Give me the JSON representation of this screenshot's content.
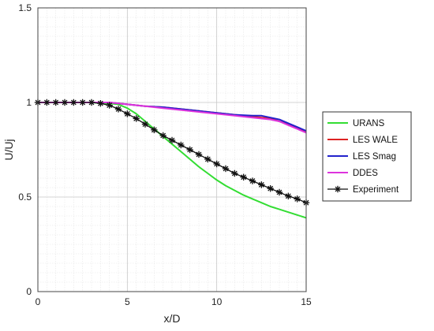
{
  "chart_data": {
    "type": "line",
    "title": "",
    "xlabel": "x/D",
    "ylabel": "U/Uj",
    "xlim": [
      0,
      15
    ],
    "ylim": [
      0,
      1.5
    ],
    "x_ticks": [
      "0",
      "5",
      "10",
      "15"
    ],
    "y_ticks": [
      "0",
      "0.5",
      "1",
      "1.5"
    ],
    "grid": true,
    "minor_grid": true,
    "legend_position": "right",
    "series": [
      {
        "name": "URANS",
        "color": "#33dd33",
        "marker": "none",
        "x": [
          0,
          1,
          2,
          3,
          4,
          4.5,
          5,
          5.5,
          6,
          6.5,
          7,
          7.5,
          8,
          8.5,
          9,
          9.5,
          10,
          10.5,
          11,
          11.5,
          12,
          12.5,
          13,
          13.5,
          14,
          14.5,
          15
        ],
        "y": [
          1,
          1,
          1,
          1,
          0.995,
          0.99,
          0.97,
          0.94,
          0.9,
          0.86,
          0.82,
          0.78,
          0.74,
          0.7,
          0.66,
          0.625,
          0.59,
          0.56,
          0.535,
          0.51,
          0.49,
          0.47,
          0.45,
          0.435,
          0.42,
          0.405,
          0.39
        ]
      },
      {
        "name": "LES WALE",
        "color": "#dd2222",
        "marker": "none",
        "x": [
          0,
          1,
          2,
          3,
          4,
          5,
          6,
          7,
          8,
          9,
          10,
          11,
          12,
          13,
          13.5,
          14,
          14.5,
          15
        ],
        "y": [
          1,
          1,
          1,
          1,
          1,
          0.99,
          0.98,
          0.975,
          0.965,
          0.955,
          0.945,
          0.935,
          0.925,
          0.915,
          0.9,
          0.885,
          0.865,
          0.845
        ]
      },
      {
        "name": "LES Smag",
        "color": "#2222cc",
        "marker": "none",
        "x": [
          0,
          1,
          2,
          3,
          4,
          5,
          6,
          7,
          8,
          9,
          10,
          11,
          12,
          12.5,
          13,
          13.5,
          14,
          14.5,
          15
        ],
        "y": [
          1,
          1,
          1,
          1,
          1,
          0.99,
          0.98,
          0.975,
          0.965,
          0.955,
          0.945,
          0.935,
          0.93,
          0.93,
          0.92,
          0.91,
          0.89,
          0.87,
          0.85
        ]
      },
      {
        "name": "DDES",
        "color": "#dd33dd",
        "marker": "none",
        "x": [
          0,
          1,
          2,
          3,
          4,
          5,
          6,
          7,
          8,
          9,
          10,
          11,
          12,
          13,
          13.5,
          14,
          14.5,
          15
        ],
        "y": [
          1,
          1,
          1,
          1,
          1,
          0.99,
          0.98,
          0.97,
          0.96,
          0.95,
          0.94,
          0.93,
          0.92,
          0.91,
          0.9,
          0.88,
          0.86,
          0.84
        ]
      },
      {
        "name": "Experiment",
        "color": "#111111",
        "marker": "star",
        "x": [
          0,
          0.5,
          1,
          1.5,
          2,
          2.5,
          3,
          3.5,
          4,
          4.5,
          5,
          5.5,
          6,
          6.5,
          7,
          7.5,
          8,
          8.5,
          9,
          9.5,
          10,
          10.5,
          11,
          11.5,
          12,
          12.5,
          13,
          13.5,
          14,
          14.5,
          15
        ],
        "y": [
          1,
          1,
          1,
          1,
          1,
          1,
          1,
          0.995,
          0.985,
          0.965,
          0.94,
          0.915,
          0.885,
          0.855,
          0.825,
          0.8,
          0.775,
          0.75,
          0.725,
          0.7,
          0.675,
          0.65,
          0.625,
          0.605,
          0.585,
          0.565,
          0.545,
          0.525,
          0.505,
          0.49,
          0.47
        ]
      }
    ]
  }
}
